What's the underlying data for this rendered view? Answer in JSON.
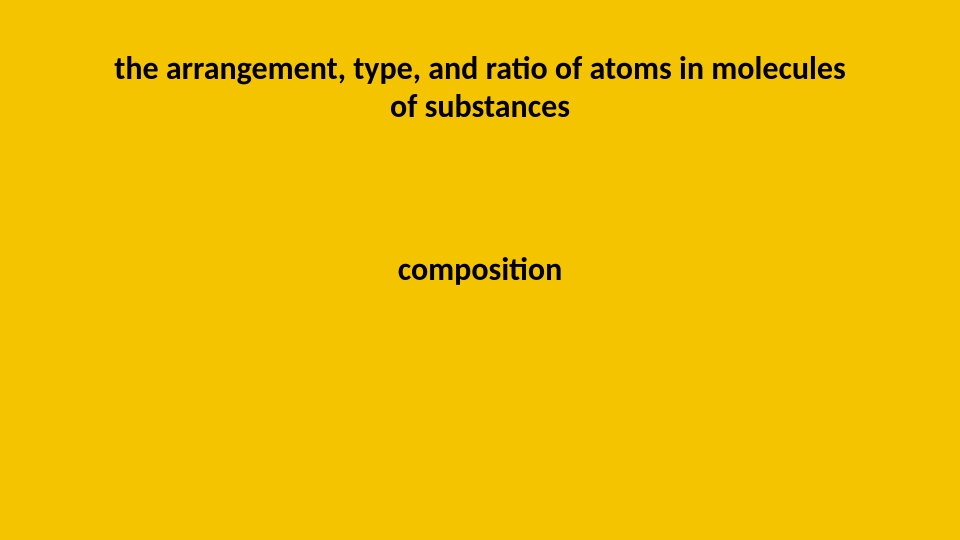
{
  "slide": {
    "definition": "the arrangement, type, and ratio of atoms in molecules of substances",
    "term": "composition",
    "background_color": "#f5c400",
    "text_color": "#000000",
    "definition_fontsize": 32,
    "term_fontsize": 32,
    "font_weight": "bold",
    "font_family": "Calibri"
  }
}
